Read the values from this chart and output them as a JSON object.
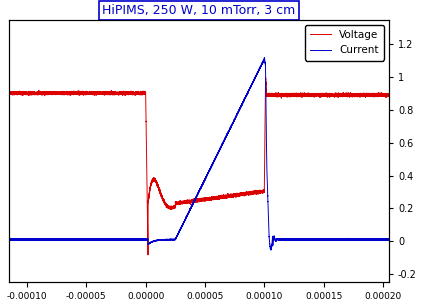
{
  "title": "HiPIMS, 250 W, 10 mTorr, 3 cm",
  "title_color": "#0000cc",
  "title_fontsize": 9,
  "voltage_color": "#dd0000",
  "current_color": "#0000cc",
  "legend_labels": [
    "Voltage",
    "Current"
  ],
  "xlim": [
    -0.000115,
    0.000205
  ],
  "ylim_voltage": [
    -0.15,
    1.35
  ],
  "ylim_current": [
    -0.25,
    1.35
  ],
  "xticks": [
    -0.0001,
    -5e-05,
    0.0,
    5e-05,
    0.0001,
    0.00015,
    0.0002
  ],
  "yticks_right": [
    -0.2,
    0.0,
    0.2,
    0.4,
    0.6,
    0.8,
    1.0,
    1.2
  ],
  "background_color": "#ffffff",
  "noise_voltage": 0.004,
  "noise_current": 0.002
}
